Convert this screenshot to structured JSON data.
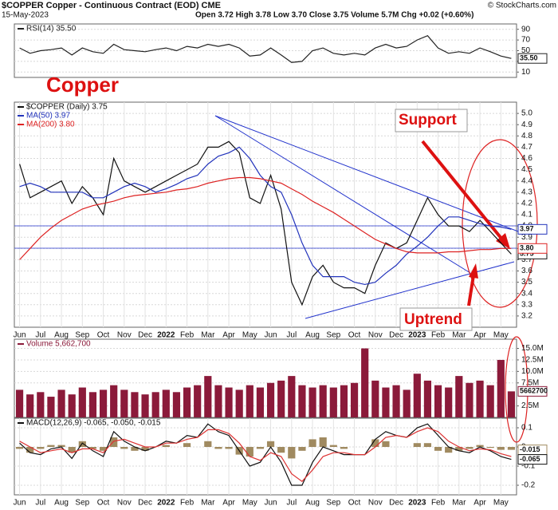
{
  "header": {
    "symbol_title": "$COPPER Copper - Continuous Contract (EOD) CME",
    "date": "15-May-2023",
    "quote": "Open 3.72 High 3.78 Low 3.70 Close 3.75 Volume 5.7M Chg +0.02 (+0.60%)",
    "credit": "© StockCharts.com"
  },
  "chart_data": [
    {
      "type": "line",
      "ylim": [
        0,
        100
      ],
      "yticks": [
        10,
        30,
        50,
        70,
        90
      ],
      "grid": true,
      "series": [
        {
          "name": "RSI(14) 35.50",
          "color": "#222222",
          "tag": "35.50",
          "values": [
            55,
            45,
            50,
            52,
            55,
            42,
            55,
            48,
            45,
            62,
            52,
            50,
            48,
            52,
            55,
            50,
            58,
            55,
            62,
            58,
            62,
            55,
            40,
            42,
            55,
            42,
            28,
            30,
            50,
            55,
            45,
            42,
            45,
            42,
            55,
            62,
            55,
            58,
            70,
            78,
            55,
            45,
            48,
            45,
            55,
            48,
            40,
            35.5
          ]
        }
      ]
    },
    {
      "type": "line",
      "ylim": [
        3.1,
        5.1
      ],
      "grid": true,
      "yticks": [
        3.2,
        3.3,
        3.4,
        3.5,
        3.6,
        3.7,
        3.8,
        3.9,
        {
          "value": 4,
          "label": "4.0"
        },
        4.1,
        4.2,
        4.3,
        4.4,
        4.5,
        4.6,
        4.7,
        4.8,
        4.9,
        {
          "value": 5,
          "label": "5.0"
        }
      ],
      "categories": [
        "Jun",
        null,
        "Jul",
        null,
        "Aug",
        null,
        "Sep",
        null,
        "Oct",
        null,
        "Nov",
        null,
        "Dec",
        null,
        "2022",
        null,
        "Feb",
        null,
        "Mar",
        null,
        "Apr",
        null,
        "May",
        null,
        "Jun",
        null,
        "Jul",
        null,
        "Aug",
        null,
        "Sep",
        null,
        "Oct",
        null,
        "Nov",
        null,
        "Dec",
        null,
        "2023",
        null,
        "Feb",
        null,
        "Mar",
        null,
        "Apr",
        null,
        "May",
        null
      ],
      "annotations": [
        "Copper",
        "Support",
        "Uptrend"
      ],
      "series": [
        {
          "name": "$COPPER (Daily) 3.75",
          "color": "#111111",
          "tag": "3.75",
          "values": [
            4.55,
            4.25,
            4.3,
            4.35,
            4.4,
            4.2,
            4.35,
            4.25,
            4.1,
            4.6,
            4.4,
            4.35,
            4.3,
            4.35,
            4.4,
            4.45,
            4.5,
            4.55,
            4.7,
            4.7,
            4.75,
            4.65,
            4.25,
            4.2,
            4.45,
            4.15,
            3.5,
            3.3,
            3.55,
            3.65,
            3.5,
            3.45,
            3.45,
            3.4,
            3.65,
            3.85,
            3.8,
            3.85,
            4.05,
            4.25,
            4.1,
            4.0,
            4.0,
            3.95,
            4.05,
            3.95,
            3.85,
            3.75
          ]
        },
        {
          "name": "MA(50) 3.97",
          "color": "#2233bb",
          "tag": "3.97",
          "values": [
            4.35,
            4.38,
            4.35,
            4.3,
            4.3,
            4.3,
            4.3,
            4.25,
            4.25,
            4.3,
            4.35,
            4.38,
            4.35,
            4.3,
            4.33,
            4.37,
            4.42,
            4.45,
            4.55,
            4.62,
            4.65,
            4.7,
            4.6,
            4.45,
            4.35,
            4.3,
            4.1,
            3.85,
            3.65,
            3.55,
            3.55,
            3.55,
            3.5,
            3.48,
            3.5,
            3.58,
            3.65,
            3.75,
            3.82,
            3.9,
            4.0,
            4.08,
            4.08,
            4.05,
            4.02,
            4.0,
            3.99,
            3.97
          ]
        },
        {
          "name": "MA(200) 3.80",
          "color": "#dd2222",
          "tag": "3.80",
          "values": [
            3.7,
            3.8,
            3.9,
            3.98,
            4.05,
            4.1,
            4.15,
            4.18,
            4.2,
            4.22,
            4.25,
            4.27,
            4.28,
            4.29,
            4.3,
            4.32,
            4.33,
            4.35,
            4.38,
            4.4,
            4.42,
            4.43,
            4.43,
            4.42,
            4.4,
            4.38,
            4.33,
            4.28,
            4.22,
            4.17,
            4.12,
            4.06,
            4.0,
            3.94,
            3.88,
            3.84,
            3.8,
            3.77,
            3.76,
            3.76,
            3.76,
            3.77,
            3.77,
            3.78,
            3.79,
            3.79,
            3.8,
            3.8
          ]
        }
      ]
    },
    {
      "type": "bar",
      "ylim": [
        0,
        17000000
      ],
      "grid": true,
      "yticks": [
        {
          "value": 2500000,
          "label": "2.5M"
        },
        {
          "value": 7500000,
          "label": "7.5M"
        },
        {
          "value": 10000000,
          "label": "10.0M"
        },
        {
          "value": 12500000,
          "label": "12.5M"
        },
        {
          "value": 15000000,
          "label": "15.0M"
        }
      ],
      "series": [
        {
          "name": "Volume 5,662,700",
          "color": "#8b1a3a",
          "tag": "5662700",
          "values": [
            6000000,
            5000000,
            5500000,
            4500000,
            6000000,
            5000000,
            6500000,
            5500000,
            6000000,
            7000000,
            6000000,
            5500000,
            5000000,
            5500000,
            6000000,
            5500000,
            6500000,
            7000000,
            9000000,
            7000000,
            6500000,
            6000000,
            7000000,
            6500000,
            7500000,
            8000000,
            9000000,
            7000000,
            6500000,
            7000000,
            6500000,
            7000000,
            7500000,
            15000000,
            8000000,
            6500000,
            7000000,
            6000000,
            9500000,
            8000000,
            7000000,
            6500000,
            9000000,
            7500000,
            8000000,
            7000000,
            12500000,
            5662700
          ]
        }
      ]
    },
    {
      "type": "line",
      "ylim": [
        -0.25,
        0.15
      ],
      "yticks": [
        -0.2,
        -0.1,
        0,
        0.1
      ],
      "grid": true,
      "categories": [
        "Jun",
        null,
        "Jul",
        null,
        "Aug",
        null,
        "Sep",
        null,
        "Oct",
        null,
        "Nov",
        null,
        "Dec",
        null,
        "2022",
        null,
        "Feb",
        null,
        "Mar",
        null,
        "Apr",
        null,
        "May",
        null,
        "Jun",
        null,
        "Jul",
        null,
        "Aug",
        null,
        "Sep",
        null,
        "Oct",
        null,
        "Nov",
        null,
        "Dec",
        null,
        "2023",
        null,
        "Feb",
        null,
        "Mar",
        null,
        "Apr",
        null,
        "May",
        null
      ],
      "series": [
        {
          "type": "bar",
          "color": "#a08a60",
          "tag": "-0.015",
          "values": [
            -0.01,
            -0.03,
            -0.01,
            0.01,
            0.01,
            -0.03,
            0.03,
            -0.01,
            -0.02,
            0.05,
            -0.01,
            -0.02,
            -0.02,
            0,
            0.01,
            0,
            0.02,
            0,
            0.03,
            -0.01,
            -0.01,
            -0.04,
            -0.05,
            -0.01,
            0.03,
            -0.03,
            -0.06,
            -0.02,
            0.04,
            0.05,
            0.01,
            -0.01,
            0,
            0,
            0.04,
            0.03,
            0,
            0,
            0.02,
            0.02,
            -0.02,
            -0.03,
            -0.02,
            -0.01,
            0.01,
            -0.005,
            -0.015,
            -0.015
          ]
        },
        {
          "name": "MACD(12,26,9) -0.065, -0.050, -0.015",
          "color": "#111111",
          "tag": "-0.065",
          "values": [
            0.02,
            -0.03,
            -0.04,
            -0.01,
            0,
            -0.06,
            0.02,
            -0.02,
            -0.05,
            0.08,
            0.03,
            0,
            -0.02,
            0,
            0.03,
            0.02,
            0.06,
            0.05,
            0.12,
            0.08,
            0.06,
            -0.02,
            -0.1,
            -0.08,
            0,
            -0.08,
            -0.2,
            -0.2,
            -0.08,
            0,
            -0.02,
            -0.04,
            -0.04,
            -0.04,
            0.04,
            0.08,
            0.06,
            0.05,
            0.1,
            0.12,
            0.06,
            0,
            -0.02,
            -0.03,
            0,
            -0.02,
            -0.05,
            -0.065
          ]
        },
        {
          "color": "#dd3333",
          "values": [
            0.03,
            0,
            -0.03,
            -0.02,
            -0.01,
            -0.03,
            -0.01,
            -0.01,
            -0.03,
            0.03,
            0.04,
            0.02,
            0,
            0,
            0.02,
            0.02,
            0.04,
            0.05,
            0.09,
            0.09,
            0.07,
            0.02,
            -0.05,
            -0.07,
            -0.03,
            -0.05,
            -0.14,
            -0.18,
            -0.12,
            -0.05,
            -0.03,
            -0.03,
            -0.04,
            -0.04,
            0,
            0.05,
            0.06,
            0.05,
            0.08,
            0.1,
            0.08,
            0.03,
            0,
            -0.02,
            -0.01,
            -0.015,
            -0.035,
            -0.05
          ]
        }
      ]
    }
  ]
}
